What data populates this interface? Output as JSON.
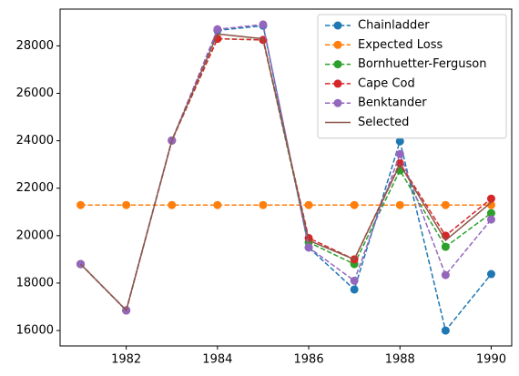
{
  "chart_data": {
    "type": "line",
    "x": [
      1981,
      1982,
      1983,
      1984,
      1985,
      1986,
      1987,
      1988,
      1989,
      1990
    ],
    "series": [
      {
        "name": "Chainladder",
        "color": "#1f77b4",
        "dashed": true,
        "marker": true,
        "values": [
          18800,
          16850,
          24010,
          28650,
          28850,
          19500,
          17730,
          23980,
          16000,
          18380
        ]
      },
      {
        "name": "Expected Loss",
        "color": "#ff7f0e",
        "dashed": true,
        "marker": true,
        "values": [
          21290,
          21290,
          21290,
          21290,
          21290,
          21290,
          21290,
          21290,
          21290,
          21290
        ]
      },
      {
        "name": "Bornhuetter-Ferguson",
        "color": "#2ca02c",
        "dashed": true,
        "marker": true,
        "values": [
          18800,
          16850,
          24010,
          28300,
          28250,
          19720,
          18800,
          22750,
          19530,
          20950
        ]
      },
      {
        "name": "Cape Cod",
        "color": "#d62728",
        "dashed": true,
        "marker": true,
        "values": [
          18800,
          16850,
          24010,
          28300,
          28250,
          19900,
          19000,
          23050,
          20000,
          21560
        ]
      },
      {
        "name": "Benktander",
        "color": "#9467bd",
        "dashed": true,
        "marker": true,
        "values": [
          18800,
          16850,
          24010,
          28700,
          28900,
          19500,
          18100,
          23440,
          18340,
          20680
        ]
      },
      {
        "name": "Selected",
        "color": "#8c564b",
        "dashed": false,
        "marker": false,
        "values": [
          18800,
          16850,
          24010,
          28500,
          28300,
          19800,
          19000,
          23000,
          19800,
          21400
        ]
      }
    ],
    "xlim": [
      1980.55,
      1990.45
    ],
    "ylim": [
      15350,
      29550
    ],
    "xticks": [
      1982,
      1984,
      1986,
      1988,
      1990
    ],
    "yticks": [
      16000,
      18000,
      20000,
      22000,
      24000,
      26000,
      28000
    ],
    "legend": "upper right"
  }
}
